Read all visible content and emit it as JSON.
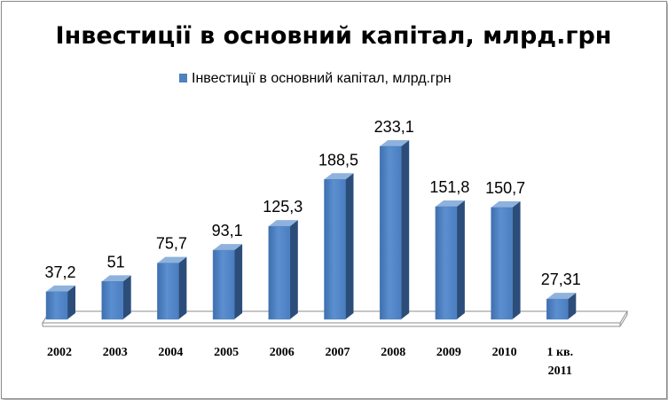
{
  "chart_data": {
    "type": "bar",
    "title": "Інвестиції в основний капітал, млрд.грн",
    "legend_position": "top",
    "categories": [
      "2002",
      "2003",
      "2004",
      "2005",
      "2006",
      "2007",
      "2008",
      "2009",
      "2010",
      "1 кв. 2011"
    ],
    "series": [
      {
        "name": "Інвестиції в основний капітал, млрд.грн",
        "values": [
          37.2,
          51,
          75.7,
          93.1,
          125.3,
          188.5,
          233.1,
          151.8,
          150.7,
          27.31
        ],
        "labels": [
          "37,2",
          "51",
          "75,7",
          "93,1",
          "125,3",
          "188,5",
          "233,1",
          "151,8",
          "150,7",
          "27,31"
        ],
        "color": "#4f81bd"
      }
    ],
    "grid": false,
    "style": "3d-column"
  }
}
